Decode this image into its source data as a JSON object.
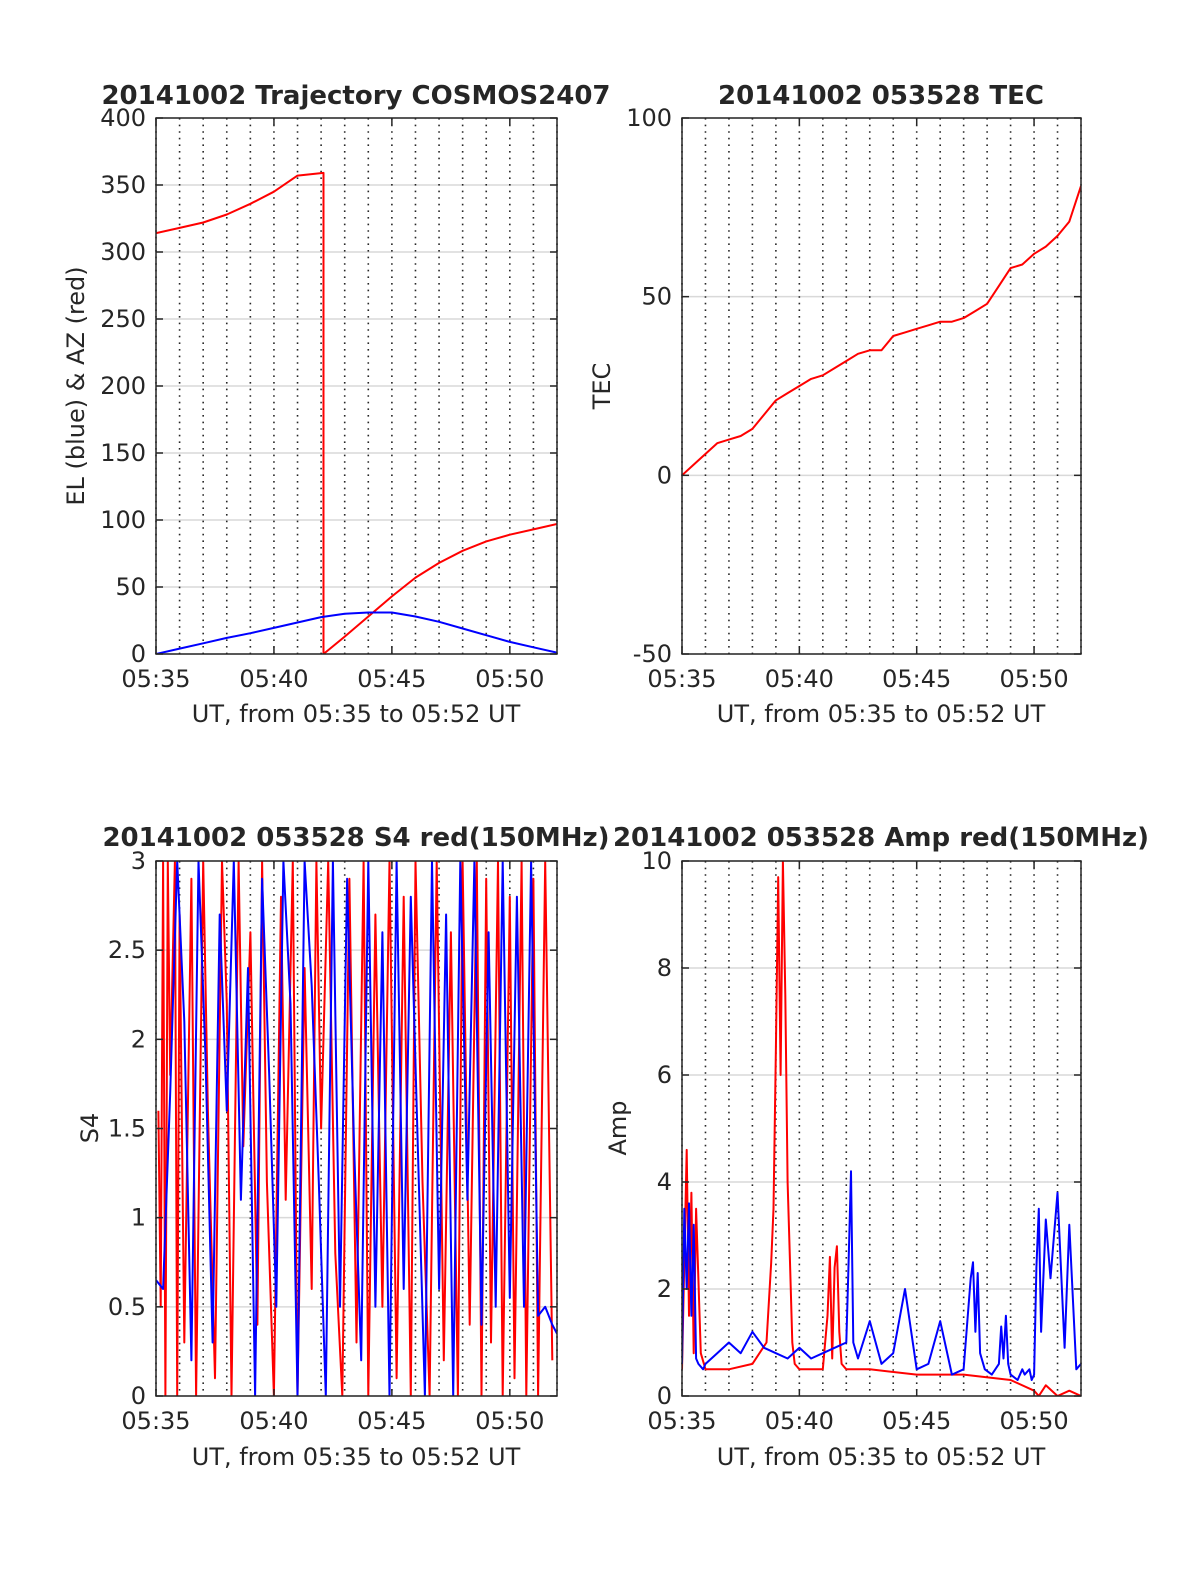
{
  "figure": {
    "colors": {
      "red": "#ff0000",
      "blue": "#0000ff",
      "axis": "#262626",
      "grid": "#d9d9d9",
      "minor_grid": "#262626"
    }
  },
  "chart_data": [
    {
      "type": "line",
      "title": "20141002 Trajectory COSMOS2407",
      "xlabel": "UT, from 05:35 to 05:52 UT",
      "ylabel": "EL (blue) & AZ (red)",
      "xlim": [
        0,
        17
      ],
      "ylim": [
        0,
        400
      ],
      "x_ticks": [
        0,
        5,
        10,
        15
      ],
      "x_tick_labels": [
        "05:35",
        "05:40",
        "05:45",
        "05:50"
      ],
      "y_ticks": [
        0,
        50,
        100,
        150,
        200,
        250,
        300,
        350,
        400
      ],
      "y_tick_labels": [
        "0",
        "50",
        "100",
        "150",
        "200",
        "250",
        "300",
        "350",
        "400"
      ],
      "grid": true,
      "series": [
        {
          "color": "#ff0000",
          "x": [
            0,
            1,
            2,
            3,
            4,
            5,
            6,
            7.1,
            7.1,
            8,
            9,
            10,
            11,
            12,
            13,
            14,
            15,
            16,
            17
          ],
          "y": [
            314,
            318,
            322,
            328,
            336,
            345,
            357,
            359,
            0,
            13,
            28,
            43,
            57,
            68,
            77,
            84,
            89,
            93,
            97
          ]
        },
        {
          "color": "#0000ff",
          "x": [
            0,
            1,
            2,
            3,
            4,
            5,
            6,
            7,
            8,
            9,
            10,
            11,
            12,
            13,
            14,
            15,
            16,
            17
          ],
          "y": [
            0,
            4,
            8,
            12,
            15.5,
            19.5,
            23.5,
            27.5,
            30,
            31,
            31,
            28,
            24,
            19,
            14,
            9,
            5,
            1
          ]
        }
      ]
    },
    {
      "type": "line",
      "title": "20141002 053528 TEC",
      "xlabel": "UT, from 05:35 to 05:52 UT",
      "ylabel": "TEC",
      "xlim": [
        0,
        17
      ],
      "ylim": [
        -50,
        100
      ],
      "x_ticks": [
        0,
        5,
        10,
        15
      ],
      "x_tick_labels": [
        "05:35",
        "05:40",
        "05:45",
        "05:50"
      ],
      "y_ticks": [
        -50,
        0,
        50,
        100
      ],
      "y_tick_labels": [
        "-50",
        "0",
        "50",
        "100"
      ],
      "grid": true,
      "series": [
        {
          "color": "#ff0000",
          "x": [
            0,
            0.5,
            1,
            1.5,
            2,
            2.5,
            3,
            3.5,
            4,
            4.5,
            5,
            5.5,
            6,
            6.5,
            7,
            7.5,
            8,
            8.5,
            9,
            9.5,
            10,
            10.5,
            11,
            11.5,
            12,
            12.5,
            13,
            13.5,
            14,
            14.5,
            15,
            15.5,
            16,
            16.5,
            17
          ],
          "y": [
            0,
            3,
            6,
            9,
            10,
            11,
            13,
            17,
            21,
            23,
            25,
            27,
            28,
            30,
            32,
            34,
            35,
            35,
            39,
            40,
            41,
            42,
            43,
            43,
            44,
            46,
            48,
            53,
            58,
            59,
            62,
            64,
            67,
            71,
            81
          ]
        }
      ]
    },
    {
      "type": "line",
      "title": "20141002 053528 S4 red(150MHz)",
      "xlabel": "UT, from 05:35 to 05:52 UT",
      "ylabel": "S4",
      "xlim": [
        0,
        17
      ],
      "ylim": [
        0,
        3
      ],
      "x_ticks": [
        0,
        5,
        10,
        15
      ],
      "x_tick_labels": [
        "05:35",
        "05:40",
        "05:45",
        "05:50"
      ],
      "y_ticks": [
        0,
        0.5,
        1,
        1.5,
        2,
        2.5,
        3
      ],
      "y_tick_labels": [
        "0",
        "0.5",
        "1",
        "1.5",
        "2",
        "2.5",
        "3"
      ],
      "grid": true,
      "series": [
        {
          "color": "#ff0000",
          "x": [
            0.1,
            0.2,
            0.3,
            0.4,
            0.5,
            0.6,
            0.8,
            0.9,
            1,
            1.2,
            1.5,
            1.7,
            2,
            2.2,
            2.5,
            2.8,
            3,
            3.2,
            3.5,
            3.7,
            4,
            4.3,
            4.5,
            4.7,
            5,
            5.3,
            5.5,
            5.8,
            6,
            6.3,
            6.6,
            6.8,
            7,
            7.3,
            7.6,
            7.9,
            8.2,
            8.5,
            8.8,
            9,
            9.3,
            9.6,
            9.9,
            10.2,
            10.5,
            10.8,
            11,
            11.3,
            11.6,
            11.9,
            12.2,
            12.5,
            12.8,
            13,
            13.3,
            13.6,
            13.8,
            14,
            14.2,
            14.5,
            14.7,
            15,
            15.2,
            15.5,
            15.7,
            16,
            16.2,
            16.5,
            16.8
          ],
          "y": [
            1.6,
            0.5,
            3,
            0,
            3,
            1.8,
            3,
            0,
            2.7,
            0.3,
            2.9,
            0,
            3,
            1.6,
            0.1,
            3,
            2.2,
            0,
            3,
            1.4,
            2.6,
            0.4,
            3,
            1.2,
            0,
            2.8,
            1.1,
            3,
            0,
            2.4,
            0.6,
            3,
            1.5,
            3,
            0.8,
            0,
            2.9,
            0.3,
            3,
            0,
            2.7,
            0.5,
            3,
            0.1,
            2.8,
            0,
            3,
            1.2,
            0,
            3,
            0.2,
            2.6,
            0,
            3,
            0.4,
            3,
            0,
            2.9,
            0.3,
            3,
            0,
            2.8,
            0.1,
            3,
            0,
            2.9,
            0,
            3,
            0.2
          ]
        },
        {
          "color": "#0000ff",
          "x": [
            0,
            0.3,
            0.6,
            0.9,
            1.2,
            1.5,
            1.8,
            2.1,
            2.4,
            2.7,
            3,
            3.3,
            3.6,
            3.9,
            4.2,
            4.5,
            4.8,
            5.1,
            5.4,
            5.7,
            6,
            6.3,
            6.6,
            6.9,
            7.2,
            7.5,
            7.8,
            8.1,
            8.4,
            8.7,
            9,
            9.3,
            9.6,
            9.9,
            10.2,
            10.5,
            10.8,
            11.1,
            11.4,
            11.7,
            12,
            12.3,
            12.6,
            12.9,
            13.2,
            13.5,
            13.8,
            14.1,
            14.4,
            14.7,
            15,
            15.3,
            15.6,
            15.9,
            16.2,
            16.5,
            16.8,
            17
          ],
          "y": [
            0.65,
            0.6,
            1.7,
            3,
            2.1,
            0.2,
            3,
            1.9,
            0.3,
            2.7,
            1.6,
            3,
            1.1,
            2.4,
            0,
            2.9,
            1.8,
            0.5,
            3,
            2.2,
            0,
            3,
            2.3,
            1.2,
            0,
            3,
            0.5,
            2.9,
            1.4,
            0.2,
            3,
            0.5,
            2.6,
            0,
            3,
            0.6,
            2.8,
            1.4,
            0,
            3,
            0.6,
            2.7,
            0,
            3,
            1.1,
            3,
            0.4,
            2.6,
            0.5,
            3,
            0.55,
            2.8,
            0.5,
            3,
            0.45,
            0.5,
            0.4,
            0.35
          ]
        }
      ]
    },
    {
      "type": "line",
      "title": "20141002 053528 Amp red(150MHz)",
      "xlabel": "UT, from 05:35 to 05:52 UT",
      "ylabel": "Amp",
      "xlim": [
        0,
        17
      ],
      "ylim": [
        0,
        10
      ],
      "x_ticks": [
        0,
        5,
        10,
        15
      ],
      "x_tick_labels": [
        "05:35",
        "05:40",
        "05:45",
        "05:50"
      ],
      "y_ticks": [
        0,
        2,
        4,
        6,
        8,
        10
      ],
      "y_tick_labels": [
        "0",
        "2",
        "4",
        "6",
        "8",
        "10"
      ],
      "grid": true,
      "series": [
        {
          "color": "#ff0000",
          "x": [
            0,
            0.1,
            0.2,
            0.3,
            0.4,
            0.5,
            0.6,
            0.8,
            1,
            2,
            3,
            3.6,
            3.8,
            3.9,
            4,
            4.1,
            4.2,
            4.3,
            4.4,
            4.5,
            4.6,
            4.7,
            4.8,
            5,
            6,
            6.2,
            6.3,
            6.4,
            6.5,
            6.6,
            6.7,
            6.8,
            7,
            8,
            10,
            12,
            14,
            15,
            15.2,
            15.5,
            16,
            16.5,
            17
          ],
          "y": [
            0.5,
            2.5,
            4.6,
            1.5,
            3.8,
            0.8,
            3.5,
            0.8,
            0.5,
            0.5,
            0.6,
            1,
            2.5,
            3.5,
            6.5,
            9.7,
            6,
            10,
            7.5,
            4,
            2.5,
            1,
            0.6,
            0.5,
            0.5,
            1.5,
            2.6,
            0.7,
            2.4,
            2.8,
            1.2,
            0.6,
            0.5,
            0.5,
            0.4,
            0.4,
            0.3,
            0.1,
            0,
            0.2,
            0,
            0.1,
            0
          ]
        },
        {
          "color": "#0000ff",
          "x": [
            0,
            0.1,
            0.2,
            0.3,
            0.4,
            0.5,
            0.6,
            0.7,
            0.9,
            1,
            1.5,
            2,
            2.5,
            3,
            3.5,
            4,
            4.5,
            5,
            5.5,
            6,
            6.5,
            7,
            7.1,
            7.2,
            7.3,
            7.5,
            8,
            8.5,
            9,
            9.5,
            10,
            10.5,
            11,
            11.5,
            12,
            12.3,
            12.4,
            12.5,
            12.6,
            12.7,
            12.9,
            13.2,
            13.5,
            13.6,
            13.7,
            13.8,
            13.9,
            14,
            14.3,
            14.5,
            14.6,
            14.8,
            14.9,
            15,
            15.1,
            15.2,
            15.3,
            15.5,
            15.7,
            16,
            16.3,
            16.5,
            16.8,
            17
          ],
          "y": [
            0.6,
            3.5,
            2,
            3.6,
            1.5,
            3.2,
            0.7,
            0.6,
            0.5,
            0.6,
            0.8,
            1,
            0.8,
            1.2,
            0.9,
            0.8,
            0.7,
            0.9,
            0.7,
            0.8,
            0.9,
            1,
            2.5,
            4.2,
            1,
            0.7,
            1.4,
            0.6,
            0.8,
            2,
            0.5,
            0.6,
            1.4,
            0.4,
            0.5,
            2.2,
            2.5,
            1.2,
            2.3,
            0.8,
            0.5,
            0.4,
            0.6,
            1.3,
            0.7,
            1.5,
            0.6,
            0.4,
            0.3,
            0.5,
            0.4,
            0.5,
            0.3,
            0.4,
            2.4,
            3.5,
            1.2,
            3.3,
            2.2,
            3.8,
            0.9,
            3.2,
            0.5,
            0.6
          ]
        }
      ]
    }
  ]
}
